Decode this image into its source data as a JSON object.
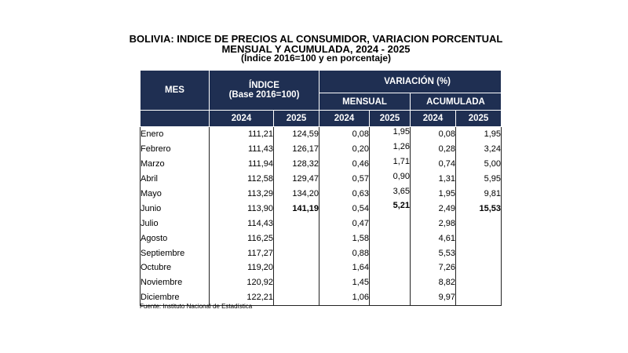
{
  "title": {
    "line1": "BOLIVIA: INDICE DE PRECIOS AL CONSUMIDOR, VARIACION PORCENTUAL",
    "line2": "MENSUAL Y ACUMULADA, 2024 - 2025",
    "line3": "(Índice 2016=100 y en porcentaje)"
  },
  "header": {
    "mes": "MES",
    "indice": "ÍNDICE",
    "indice_base": "(Base 2016=100)",
    "variacion": "VARIACIÓN (%)",
    "mensual": "MENSUAL",
    "acumulada": "ACUMULADA",
    "years": [
      "2024",
      "2025",
      "2024",
      "2025",
      "2024",
      "2025"
    ]
  },
  "rows": [
    {
      "mes": "Enero",
      "idx2024": "111,21",
      "idx2025": "124,59",
      "men2024": "0,08",
      "men2025": "1,95",
      "acu2024": "0,08",
      "acu2025": "1,95"
    },
    {
      "mes": "Febrero",
      "idx2024": "111,43",
      "idx2025": "126,17",
      "men2024": "0,20",
      "men2025": "1,26",
      "acu2024": "0,28",
      "acu2025": "3,24"
    },
    {
      "mes": "Marzo",
      "idx2024": "111,94",
      "idx2025": "128,32",
      "men2024": "0,46",
      "men2025": "1,71",
      "acu2024": "0,74",
      "acu2025": "5,00"
    },
    {
      "mes": "Abril",
      "idx2024": "112,58",
      "idx2025": "129,47",
      "men2024": "0,57",
      "men2025": "0,90",
      "acu2024": "1,31",
      "acu2025": "5,95"
    },
    {
      "mes": "Mayo",
      "idx2024": "113,29",
      "idx2025": "134,20",
      "men2024": "0,63",
      "men2025": "3,65",
      "acu2024": "1,95",
      "acu2025": "9,81"
    },
    {
      "mes": "Junio",
      "idx2024": "113,90",
      "idx2025": "141,19",
      "men2024": "0,54",
      "men2025": "5,21",
      "acu2024": "2,49",
      "acu2025": "15,53"
    },
    {
      "mes": "Julio",
      "idx2024": "114,43",
      "idx2025": "",
      "men2024": "0,47",
      "men2025": "",
      "acu2024": "2,98",
      "acu2025": ""
    },
    {
      "mes": "Agosto",
      "idx2024": "116,25",
      "idx2025": "",
      "men2024": "1,58",
      "men2025": "",
      "acu2024": "4,61",
      "acu2025": ""
    },
    {
      "mes": "Septiembre",
      "idx2024": "117,27",
      "idx2025": "",
      "men2024": "0,88",
      "men2025": "",
      "acu2024": "5,53",
      "acu2025": ""
    },
    {
      "mes": "Octubre",
      "idx2024": "119,20",
      "idx2025": "",
      "men2024": "1,64",
      "men2025": "",
      "acu2024": "7,26",
      "acu2025": ""
    },
    {
      "mes": "Noviembre",
      "idx2024": "120,92",
      "idx2025": "",
      "men2024": "1,45",
      "men2025": "",
      "acu2024": "8,82",
      "acu2025": ""
    },
    {
      "mes": "Diciembre",
      "idx2024": "122,21",
      "idx2025": "",
      "men2024": "1,06",
      "men2025": "",
      "acu2024": "9,97",
      "acu2025": ""
    }
  ],
  "source": "Fuente: Instituto Nacional de Estadística",
  "colors": {
    "header_bg": "#1f2f52",
    "header_text": "#ffffff"
  }
}
